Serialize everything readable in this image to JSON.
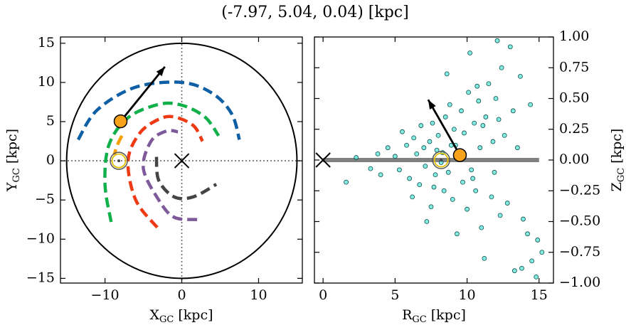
{
  "title": "(-7.97, 5.04, 0.04) [kpc]",
  "chart_data": [
    {
      "type": "line",
      "xlabel": {
        "text": "X",
        "sub": "GC",
        "unit": "[kpc]"
      },
      "ylabel": {
        "text": "Y",
        "sub": "GC",
        "unit": "[kpc]"
      },
      "xlim": [
        -15.8,
        15.7
      ],
      "ylim": [
        -15.6,
        15.8
      ],
      "xticks": [
        {
          "value": -10,
          "label": "−10"
        },
        0,
        10
      ],
      "yticks": [
        {
          "value": -15,
          "label": "−15"
        },
        {
          "value": -10,
          "label": "−10"
        },
        {
          "value": -5,
          "label": "−5"
        },
        0,
        5,
        10,
        15
      ],
      "circle_radius": 15,
      "series": [
        {
          "color": "#0f5fa5",
          "x": [
            -13.5,
            -11,
            -6,
            0,
            4,
            6.5,
            7.5
          ],
          "values": [
            2.7,
            6.5,
            9.4,
            10,
            8.6,
            6,
            2.7
          ]
        },
        {
          "color": "#12b04a",
          "x": [
            -9.2,
            -10,
            -9.5,
            -7,
            -3,
            0,
            3,
            4.8
          ],
          "values": [
            -7.8,
            -3,
            2,
            5.5,
            7.2,
            7.1,
            5.6,
            3.2
          ]
        },
        {
          "color": "#f5a000",
          "x": [
            -7.8,
            -8.4,
            -8.8
          ],
          "values": [
            3.2,
            2,
            0.8
          ]
        },
        {
          "color": "#ee3a14",
          "x": [
            -3.2,
            -6,
            -7,
            -5.5,
            -3,
            -1,
            1.5,
            2.7
          ],
          "values": [
            -8.5,
            -5,
            0,
            3.5,
            5.3,
            5.6,
            4.5,
            2.5
          ]
        },
        {
          "color": "#7e5a9b",
          "x": [
            2,
            -1,
            -3,
            -5,
            -4,
            -2,
            -0.5
          ],
          "values": [
            -7.5,
            -7.2,
            -5,
            -1,
            2.5,
            3.8,
            3.7
          ]
        },
        {
          "color": "#444444",
          "x": [
            -3.3,
            -3,
            -1,
            1.5,
            4.5
          ],
          "values": [
            0.5,
            -2.5,
            -4.6,
            -4.6,
            -3
          ]
        }
      ],
      "marker": {
        "x": -7.97,
        "y": 5.04,
        "color": "#f8a31b"
      },
      "arrow": {
        "x": -2.2,
        "y": 12.0
      },
      "center": {
        "x": 0,
        "y": 0
      },
      "sun_symbol": {
        "x": -8.2,
        "y": 0
      }
    },
    {
      "type": "scatter",
      "xlabel": {
        "text": "R",
        "sub": "GC",
        "unit": "[kpc]"
      },
      "ylabel": {
        "text": "Z",
        "sub": "GC",
        "unit": "[kpc]"
      },
      "xlim": [
        -0.6,
        16.0
      ],
      "ylim": [
        -1,
        1
      ],
      "xticks": [
        0,
        5,
        10,
        15
      ],
      "yticks": [
        {
          "value": -1,
          "label": "−1.00"
        },
        {
          "value": -0.75,
          "label": "−0.75"
        },
        {
          "value": -0.5,
          "label": "−0.50"
        },
        {
          "value": -0.25,
          "label": "−0.25"
        },
        {
          "value": 0,
          "label": "0.00"
        },
        {
          "value": 0.25,
          "label": "0.25"
        },
        {
          "value": 0.5,
          "label": "0.50"
        },
        {
          "value": 0.75,
          "label": "0.75"
        },
        {
          "value": 1,
          "label": "1.00"
        }
      ],
      "disk_line": {
        "x": [
          0,
          15
        ],
        "values": [
          0,
          0
        ],
        "color": "#808080"
      },
      "series": [
        {
          "color": "#40e0d0",
          "x": [
            1.6,
            2.3,
            3.3,
            3.8,
            4.0,
            4.5,
            5.0,
            5.3,
            5.5,
            5.8,
            6.0,
            6.2,
            6.3,
            6.5,
            6.7,
            6.8,
            7.0,
            7.1,
            7.2,
            7.4,
            7.5,
            7.6,
            7.8,
            7.9,
            8.0,
            8.2,
            8.4,
            8.5,
            8.6,
            8.7,
            8.8,
            8.9,
            9.0,
            9.1,
            9.3,
            9.4,
            9.6,
            9.7,
            9.8,
            10.0,
            10.1,
            10.2,
            10.3,
            10.5,
            10.6,
            10.8,
            10.9,
            11.0,
            11.2,
            11.3,
            11.5,
            11.7,
            11.8,
            12.0,
            12.1,
            12.3,
            12.4,
            12.6,
            12.8,
            13.0,
            13.2,
            13.3,
            13.5,
            13.7,
            13.8,
            13.9,
            14.2,
            14.4,
            14.5,
            14.8,
            14.9,
            15.2,
            9.2,
            10.4,
            11.1,
            8.3,
            7.7,
            12.2,
            11.9,
            10.7
          ],
          "values": [
            -0.18,
            0.02,
            -0.07,
            0.05,
            -0.12,
            0.1,
            0.03,
            -0.08,
            0.23,
            0.12,
            -0.15,
            -0.3,
            0.18,
            0.05,
            -0.2,
            0.28,
            0.1,
            -0.05,
            -0.5,
            0.15,
            -0.38,
            0.3,
            -0.12,
            0.08,
            0.2,
            -0.02,
            -0.25,
            0.35,
            0.7,
            -0.1,
            0.45,
            0.12,
            -0.32,
            0.25,
            -0.6,
            0.05,
            0.4,
            -0.18,
            0.22,
            -0.4,
            0.55,
            0.87,
            -0.08,
            0.3,
            -0.25,
            0.48,
            0.1,
            -0.55,
            -0.8,
            0.35,
            0.62,
            -0.3,
            0.15,
            0.5,
            0.97,
            -0.45,
            0.75,
            0.2,
            -0.35,
            0.92,
            0.4,
            -0.9,
            0.1,
            0.68,
            -0.88,
            -0.48,
            -0.6,
            0.45,
            -0.82,
            -0.95,
            -0.65,
            -0.75,
            0.12,
            -0.15,
            0.28,
            0.06,
            -0.22,
            0.33,
            -0.1,
            0.6
          ]
        }
      ],
      "marker": {
        "x": 9.5,
        "y": 0.04,
        "color": "#f8a31b"
      },
      "arrow": {
        "x": 7.3,
        "y": 0.49
      },
      "center": {
        "x": 0,
        "y": 0
      },
      "sun_symbol": {
        "x": 8.2,
        "y": 0
      }
    }
  ]
}
